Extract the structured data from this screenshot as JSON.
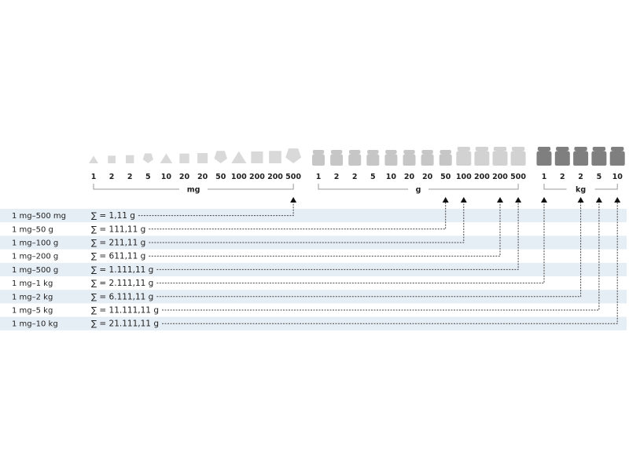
{
  "groups": [
    {
      "unit": "mg",
      "color": "#d9d9d9",
      "weights": [
        {
          "value": "1",
          "shape": "triangle"
        },
        {
          "value": "2",
          "shape": "square"
        },
        {
          "value": "2",
          "shape": "square"
        },
        {
          "value": "5",
          "shape": "pentagon"
        },
        {
          "value": "10",
          "shape": "triangle"
        },
        {
          "value": "20",
          "shape": "square"
        },
        {
          "value": "20",
          "shape": "square"
        },
        {
          "value": "50",
          "shape": "pentagon"
        },
        {
          "value": "100",
          "shape": "triangle"
        },
        {
          "value": "200",
          "shape": "square"
        },
        {
          "value": "200",
          "shape": "square"
        },
        {
          "value": "500",
          "shape": "pentagon"
        }
      ]
    },
    {
      "unit": "g",
      "color": "#c6c6c6",
      "weights": [
        {
          "value": "1",
          "shape": "weight"
        },
        {
          "value": "2",
          "shape": "weight"
        },
        {
          "value": "2",
          "shape": "weight"
        },
        {
          "value": "5",
          "shape": "weight"
        },
        {
          "value": "10",
          "shape": "weight"
        },
        {
          "value": "20",
          "shape": "weight"
        },
        {
          "value": "20",
          "shape": "weight"
        },
        {
          "value": "50",
          "shape": "weight"
        },
        {
          "value": "100",
          "shape": "weight"
        },
        {
          "value": "200",
          "shape": "weight"
        },
        {
          "value": "200",
          "shape": "weight"
        },
        {
          "value": "500",
          "shape": "weight"
        }
      ]
    },
    {
      "unit": "kg",
      "color": "#7f7f7f",
      "weights": [
        {
          "value": "1",
          "shape": "weight"
        },
        {
          "value": "2",
          "shape": "weight"
        },
        {
          "value": "2",
          "shape": "weight"
        },
        {
          "value": "5",
          "shape": "weight"
        },
        {
          "value": "10",
          "shape": "weight"
        }
      ]
    }
  ],
  "rows": [
    {
      "range": "1 mg–500 mg",
      "sum": "∑ = 1,11 g",
      "target": "500 mg"
    },
    {
      "range": "1 mg–50 g",
      "sum": "∑ = 111,11 g",
      "target": "50 g"
    },
    {
      "range": "1 mg–100 g",
      "sum": "∑ = 211,11 g",
      "target": "100 g"
    },
    {
      "range": "1 mg–200 g",
      "sum": "∑ = 611,11 g",
      "target": "200 g"
    },
    {
      "range": "1 mg–500 g",
      "sum": "∑ = 1.111,11 g",
      "target": "500 g"
    },
    {
      "range": "1 mg–1 kg",
      "sum": "∑ = 2.111,11 g",
      "target": "1 kg"
    },
    {
      "range": "1 mg–2 kg",
      "sum": "∑ = 6.111,11 g",
      "target": "2 kg"
    },
    {
      "range": "1 mg–5 kg",
      "sum": "∑ = 11.111,11 g",
      "target": "5 kg"
    },
    {
      "range": "1 mg–10 kg",
      "sum": "∑ = 21.111,11 g",
      "target": "10 kg"
    }
  ],
  "colors": {
    "row_band": "#e6eef5",
    "line": "#444444",
    "bracket": "#999999"
  }
}
